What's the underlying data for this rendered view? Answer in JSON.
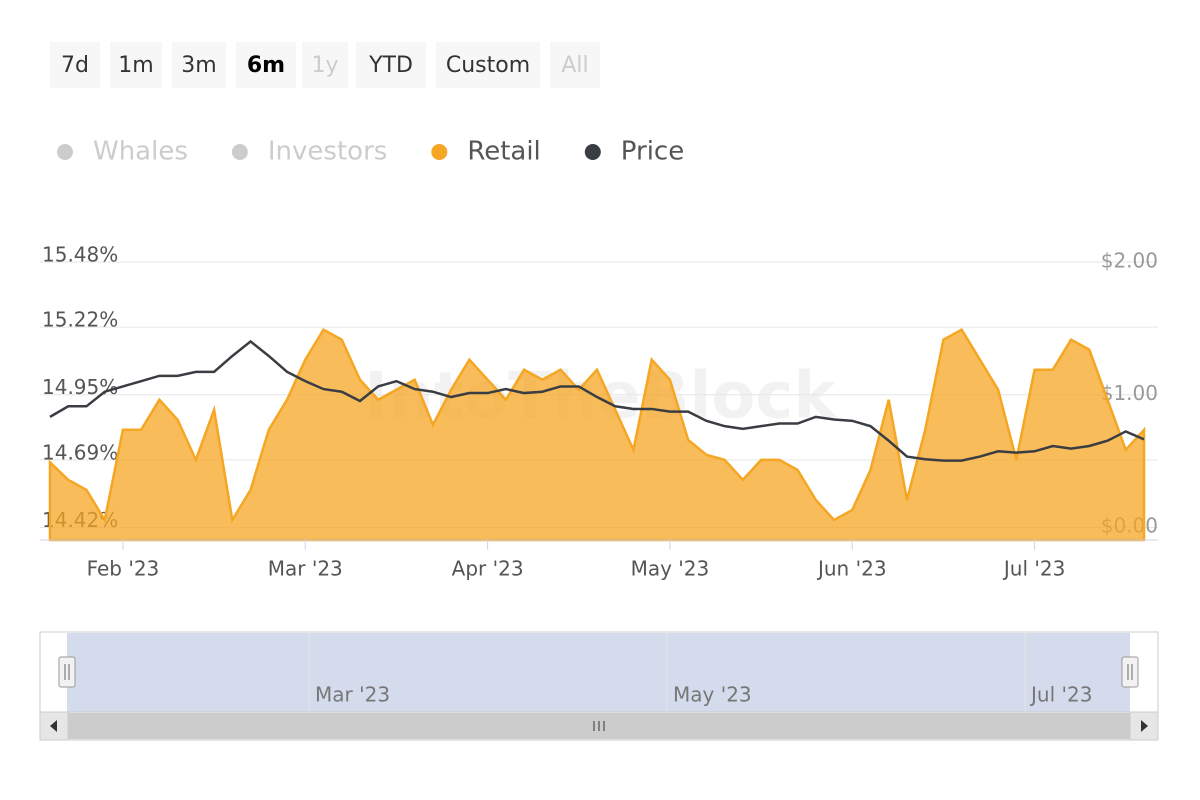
{
  "range_selector": {
    "buttons": [
      "7d",
      "1m",
      "3m",
      "6m",
      "1y",
      "YTD",
      "Custom",
      "All"
    ],
    "selected": "6m",
    "disabled": [
      "1y",
      "All"
    ]
  },
  "chart_data": {
    "type": "area-line",
    "watermark": "IntoTheBlock",
    "categories": [
      null,
      null,
      null,
      null,
      "Feb '23",
      null,
      null,
      null,
      null,
      null,
      null,
      null,
      null,
      null,
      "Mar '23",
      null,
      null,
      null,
      null,
      null,
      null,
      null,
      null,
      null,
      "Apr '23",
      null,
      null,
      null,
      null,
      null,
      null,
      null,
      null,
      null,
      "May '23",
      null,
      null,
      null,
      null,
      null,
      null,
      null,
      null,
      null,
      "Jun '23",
      null,
      null,
      null,
      null,
      null,
      null,
      null,
      null,
      null,
      "Jul '23",
      null,
      null,
      null,
      null,
      null,
      null
    ],
    "series": [
      {
        "name": "Whales",
        "color": "#cccccc",
        "visible": false
      },
      {
        "name": "Investors",
        "color": "#cccccc",
        "visible": false
      },
      {
        "name": "Retail",
        "color": "#f5a623",
        "visible": true,
        "kind": "area",
        "axis": "y",
        "values": [
          14.68,
          14.61,
          14.57,
          14.45,
          14.81,
          14.81,
          14.93,
          14.85,
          14.69,
          14.89,
          14.45,
          14.57,
          14.81,
          14.93,
          15.09,
          15.21,
          15.17,
          15.01,
          14.93,
          14.97,
          15.01,
          14.83,
          14.97,
          15.09,
          15.01,
          14.93,
          15.05,
          15.01,
          15.05,
          14.97,
          15.05,
          14.89,
          14.73,
          15.09,
          15.01,
          14.77,
          14.71,
          14.69,
          14.61,
          14.69,
          14.69,
          14.65,
          14.53,
          14.45,
          14.49,
          14.65,
          14.93,
          14.53,
          14.81,
          15.17,
          15.21,
          15.09,
          14.97,
          14.69,
          15.05,
          15.05,
          15.17,
          15.13,
          14.93,
          14.73,
          14.81
        ]
      },
      {
        "name": "Price",
        "color": "#3a3d42",
        "visible": true,
        "kind": "line",
        "axis": "y2",
        "values": [
          0.83,
          0.91,
          0.91,
          1.02,
          1.06,
          1.1,
          1.14,
          1.14,
          1.17,
          1.17,
          1.29,
          1.4,
          1.29,
          1.17,
          1.1,
          1.04,
          1.02,
          0.95,
          1.06,
          1.1,
          1.04,
          1.02,
          0.98,
          1.01,
          1.01,
          1.04,
          1.01,
          1.02,
          1.06,
          1.06,
          0.98,
          0.91,
          0.89,
          0.89,
          0.87,
          0.87,
          0.8,
          0.76,
          0.74,
          0.76,
          0.78,
          0.78,
          0.83,
          0.81,
          0.8,
          0.76,
          0.65,
          0.53,
          0.51,
          0.5,
          0.5,
          0.53,
          0.57,
          0.56,
          0.57,
          0.61,
          0.59,
          0.61,
          0.65,
          0.72,
          0.66
        ]
      }
    ],
    "ylim": [
      14.37,
      15.48
    ],
    "yticks": [
      {
        "value": 14.42,
        "label": "14.42%"
      },
      {
        "value": 14.69,
        "label": "14.69%"
      },
      {
        "value": 14.95,
        "label": "14.95%"
      },
      {
        "value": 15.22,
        "label": "15.22%"
      },
      {
        "value": 15.48,
        "label": "15.48%"
      }
    ],
    "y2lim": [
      -0.1,
      2.0
    ],
    "y2ticks": [
      {
        "value": 0,
        "label": "$0.00"
      },
      {
        "value": 1,
        "label": "$1.00"
      },
      {
        "value": 2,
        "label": "$2.00"
      }
    ],
    "grid": true
  },
  "navigator": {
    "labels": [
      "Mar '23",
      "May '23",
      "Jul '23"
    ]
  }
}
